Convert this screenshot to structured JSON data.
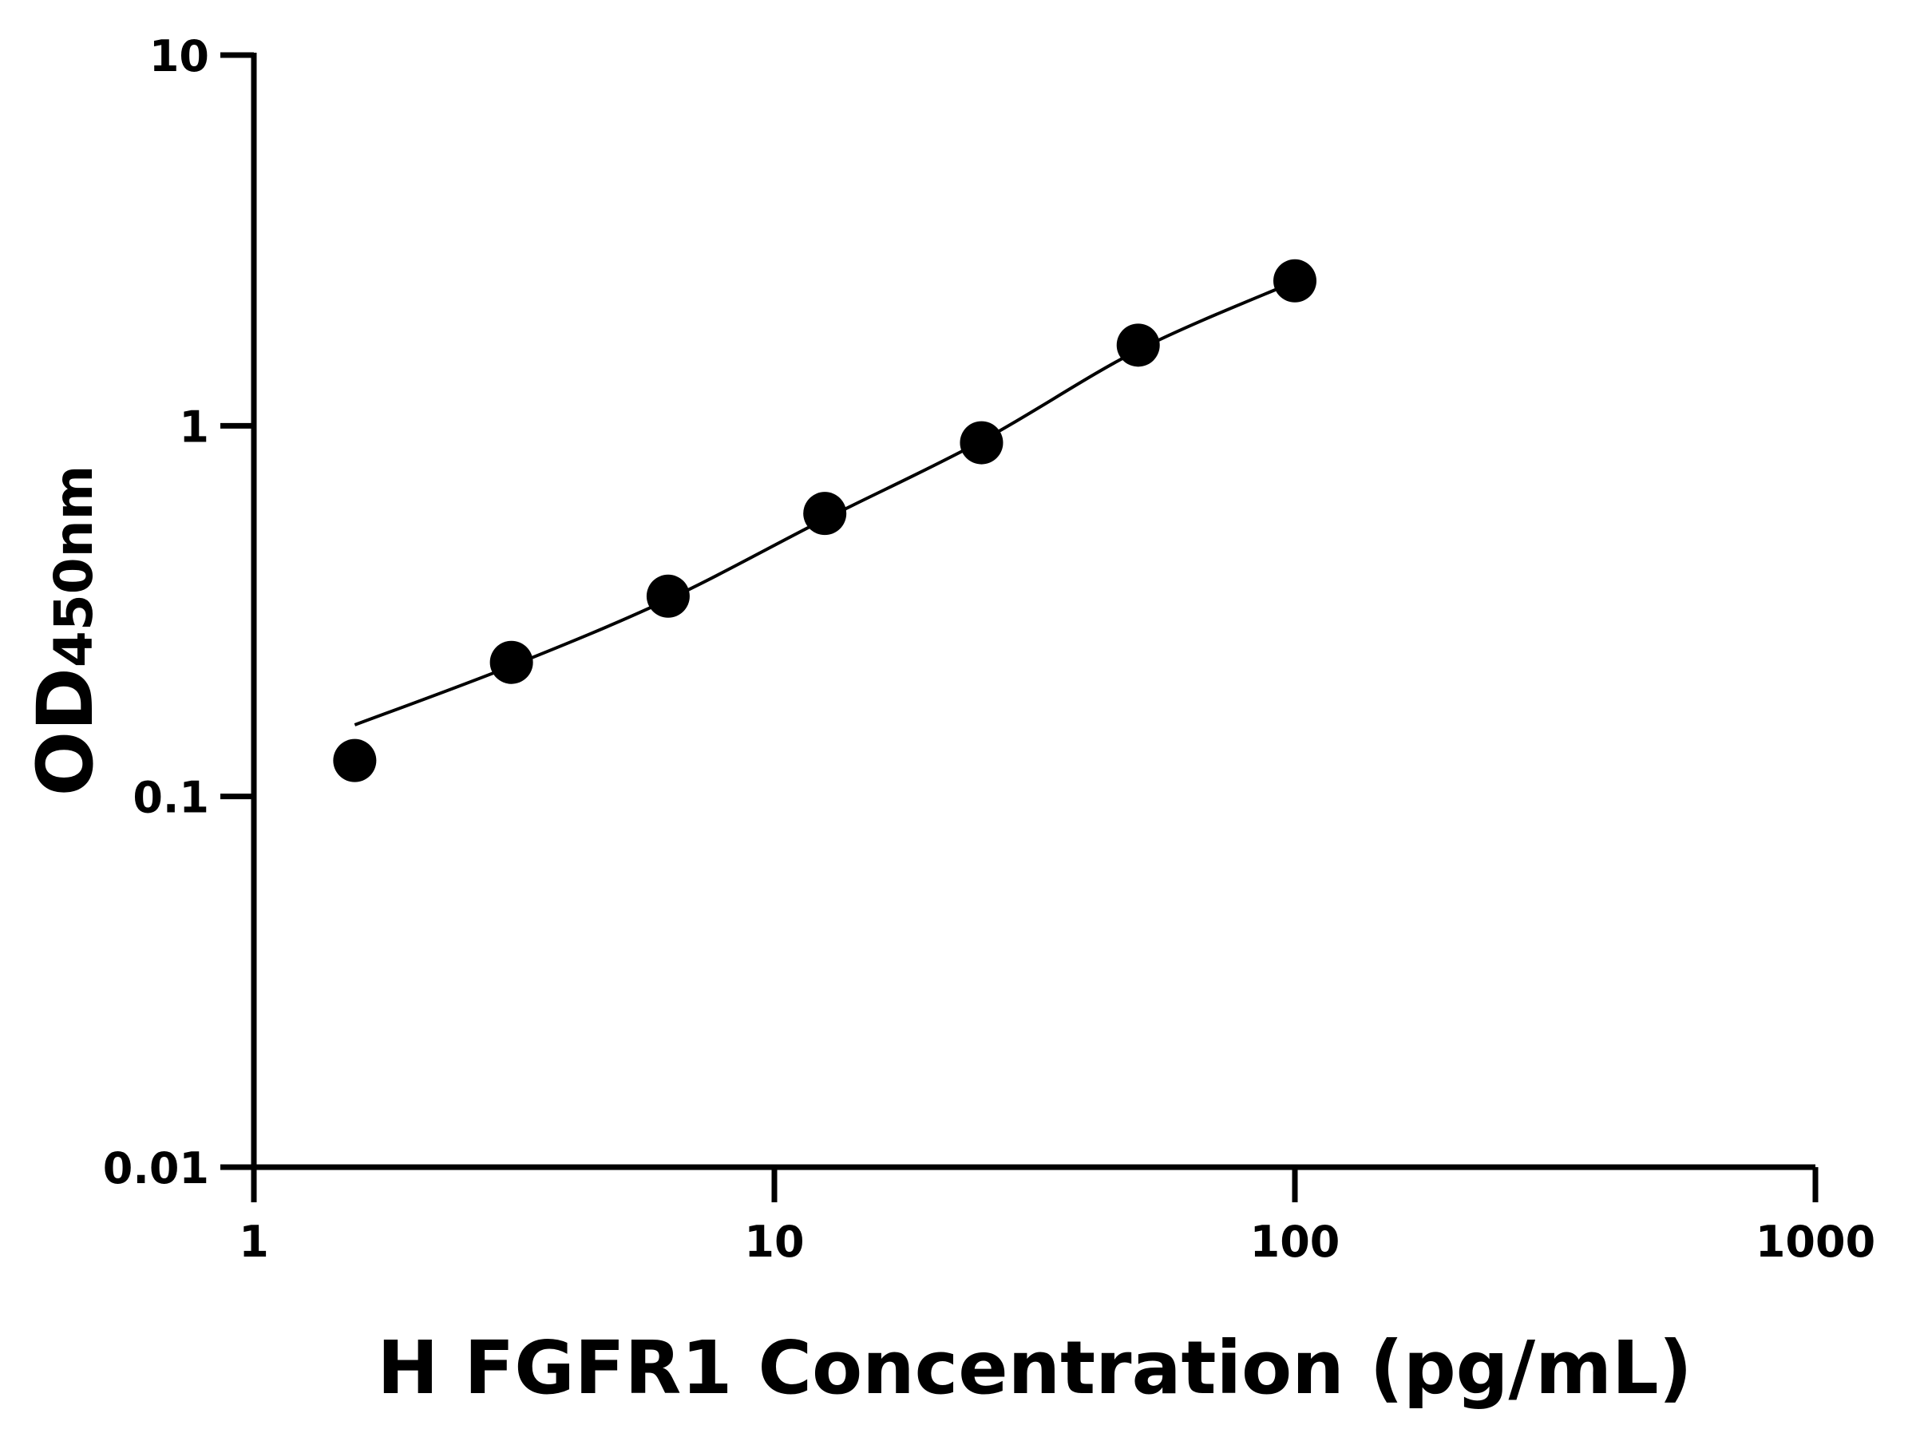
{
  "chart_data": {
    "type": "scatter",
    "title": "",
    "xlabel": "H FGFR1 Concentration (pg/mL)",
    "ylabel": {
      "main": "OD",
      "subscript": "450nm"
    },
    "xscale": "log",
    "yscale": "log",
    "xlim": [
      1,
      1000
    ],
    "ylim": [
      0.01,
      10
    ],
    "xticks": [
      {
        "value": 1,
        "label": "1"
      },
      {
        "value": 10,
        "label": "10"
      },
      {
        "value": 100,
        "label": "100"
      },
      {
        "value": 1000,
        "label": "1000"
      }
    ],
    "yticks": [
      {
        "value": 0.01,
        "label": "0.01"
      },
      {
        "value": 0.1,
        "label": "0.1"
      },
      {
        "value": 1,
        "label": "1"
      },
      {
        "value": 10,
        "label": "10"
      }
    ],
    "grid": false,
    "legend": "none",
    "color": "#000000",
    "points": {
      "x": [
        1.5625,
        3.125,
        6.25,
        12.5,
        25,
        50,
        100
      ],
      "y": [
        0.125,
        0.23,
        0.347,
        0.58,
        0.9,
        1.65,
        2.46
      ]
    },
    "fit_curve": {
      "x": [
        1.5625,
        3.125,
        6.25,
        12.5,
        25,
        50,
        100
      ],
      "y": [
        0.156,
        0.225,
        0.34,
        0.56,
        0.91,
        1.6,
        2.45
      ]
    }
  }
}
